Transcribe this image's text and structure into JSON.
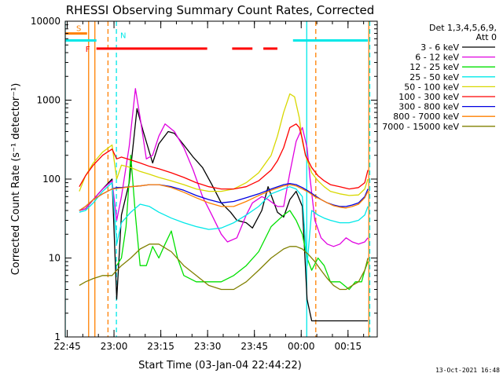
{
  "chart_data": {
    "type": "line",
    "title": "RHESSI Observing Summary Count Rates, Corrected",
    "xlabel": "Start Time (03-Jan-04 22:44:22)",
    "ylabel": "Corrected Count Rate (s⁻¹ detector⁻¹)",
    "x_unit": "minutes since start",
    "xlim": [
      0,
      100
    ],
    "ylim": [
      1,
      10000
    ],
    "y_scale": "log",
    "x_ticks": [
      {
        "x": 0.63,
        "label": "22:45"
      },
      {
        "x": 15.63,
        "label": "23:00"
      },
      {
        "x": 30.63,
        "label": "23:15"
      },
      {
        "x": 45.63,
        "label": "23:30"
      },
      {
        "x": 60.63,
        "label": "23:45"
      },
      {
        "x": 75.63,
        "label": "00:00"
      },
      {
        "x": 90.63,
        "label": "00:15"
      }
    ],
    "y_ticks": [
      {
        "y": 1,
        "label": "1"
      },
      {
        "y": 10,
        "label": "10"
      },
      {
        "y": 100,
        "label": "100"
      },
      {
        "y": 1000,
        "label": "1000"
      },
      {
        "y": 10000,
        "label": "10000"
      }
    ],
    "legend_header": [
      "Det 1,3,4,5,6,9,",
      "Att 0"
    ],
    "legend_position": "right",
    "grid": false,
    "series": [
      {
        "name": "3 - 6 keV",
        "color": "#000000",
        "x": [
          4.5,
          6.5,
          9,
          12,
          15,
          16.5,
          18,
          20.5,
          23,
          25,
          28,
          30,
          33,
          35,
          38,
          41,
          44,
          47,
          50,
          53,
          55,
          58,
          60,
          63,
          65,
          68,
          70,
          72,
          74,
          76,
          77.5,
          79,
          85,
          89,
          92,
          94,
          96,
          97
        ],
        "y": [
          40,
          42,
          55,
          75,
          100,
          3,
          35,
          90,
          780,
          400,
          160,
          280,
          400,
          380,
          270,
          190,
          140,
          85,
          50,
          38,
          30,
          28,
          24,
          40,
          80,
          38,
          33,
          55,
          70,
          45,
          3,
          1.6,
          1.6,
          1.6,
          1.6,
          1.6,
          1.6,
          1.6
        ]
      },
      {
        "name": "6 - 12 keV",
        "color": "#e000e0",
        "x": [
          4.5,
          6.5,
          9,
          12,
          15,
          16.5,
          18,
          20.5,
          22.5,
          24,
          26,
          28,
          30,
          32,
          35,
          38,
          41,
          44,
          47,
          50,
          52,
          55,
          58,
          60,
          63,
          65,
          68,
          70,
          72,
          74,
          76,
          77.5,
          78.5,
          80,
          82,
          84,
          86,
          88,
          90,
          92,
          94,
          96,
          97
        ],
        "y": [
          40,
          42,
          55,
          75,
          95,
          30,
          60,
          260,
          1400,
          600,
          180,
          200,
          350,
          500,
          400,
          250,
          130,
          60,
          35,
          20,
          16,
          18,
          35,
          50,
          60,
          55,
          45,
          45,
          120,
          300,
          450,
          250,
          100,
          30,
          18,
          15,
          14,
          15,
          18,
          16,
          15,
          16,
          18
        ]
      },
      {
        "name": "12 - 25 keV",
        "color": "#00e000",
        "x": [
          16.5,
          18,
          19.5,
          21,
          22.5,
          24,
          26,
          28,
          30,
          32,
          34,
          36,
          38,
          42,
          46,
          50,
          54,
          58,
          62,
          66,
          70,
          72,
          74,
          76,
          77.5,
          79,
          81,
          83,
          85,
          88,
          91,
          93,
          95,
          96,
          97
        ],
        "y": [
          8,
          10,
          25,
          200,
          35,
          8,
          8,
          14,
          10,
          15,
          22,
          10,
          6,
          5,
          5,
          5,
          6,
          8,
          12,
          25,
          35,
          40,
          30,
          20,
          10,
          7,
          10,
          8,
          5,
          5,
          4,
          5,
          5,
          7,
          9
        ]
      },
      {
        "name": "25 - 50 keV",
        "color": "#00e8e8",
        "x": [
          4.5,
          6.5,
          9,
          12,
          15,
          16.5,
          18,
          21,
          24,
          27,
          30,
          34,
          38,
          42,
          46,
          50,
          54,
          58,
          62,
          66,
          70,
          72,
          74,
          76,
          77.5,
          79,
          81,
          83,
          85,
          88,
          91,
          94,
          96,
          97
        ],
        "y": [
          38,
          40,
          50,
          70,
          90,
          15,
          28,
          38,
          48,
          45,
          38,
          32,
          28,
          25,
          23,
          24,
          28,
          35,
          45,
          65,
          75,
          80,
          75,
          60,
          8,
          40,
          35,
          32,
          30,
          28,
          28,
          30,
          35,
          45
        ]
      },
      {
        "name": "50 - 100 keV",
        "color": "#d8d800",
        "x": [
          4.5,
          6.5,
          9,
          12,
          15,
          16.5,
          18,
          21,
          24,
          27,
          30,
          34,
          38,
          42,
          46,
          50,
          54,
          58,
          62,
          66,
          68,
          70,
          72,
          73.5,
          75,
          76,
          77,
          79,
          81,
          83,
          85,
          88,
          91,
          94,
          96,
          97
        ],
        "y": [
          70,
          110,
          160,
          220,
          270,
          100,
          150,
          140,
          125,
          115,
          105,
          95,
          85,
          75,
          70,
          70,
          75,
          90,
          120,
          200,
          350,
          700,
          1200,
          1100,
          600,
          300,
          200,
          120,
          95,
          80,
          70,
          65,
          62,
          63,
          75,
          100
        ]
      },
      {
        "name": "100 - 300 keV",
        "color": "#ff0000",
        "x": [
          4.5,
          6.5,
          9,
          12,
          15,
          16.5,
          18,
          21,
          24,
          27,
          30,
          34,
          38,
          42,
          46,
          50,
          54,
          58,
          62,
          66,
          68,
          70,
          72,
          74,
          75,
          76,
          77,
          79,
          81,
          83,
          85,
          88,
          91,
          94,
          96,
          97
        ],
        "y": [
          80,
          110,
          150,
          200,
          240,
          180,
          190,
          175,
          160,
          145,
          135,
          120,
          105,
          90,
          80,
          75,
          75,
          80,
          95,
          130,
          170,
          250,
          450,
          500,
          450,
          320,
          200,
          140,
          110,
          95,
          85,
          80,
          75,
          78,
          90,
          130
        ]
      },
      {
        "name": "300 - 800 keV",
        "color": "#0000e0",
        "x": [
          4.5,
          6.5,
          9,
          12,
          15,
          16.5,
          18,
          21,
          24,
          27,
          30,
          34,
          38,
          42,
          46,
          50,
          54,
          58,
          62,
          66,
          70,
          72,
          74,
          76,
          78,
          80,
          82,
          84,
          86,
          88,
          90,
          92,
          94,
          96,
          97
        ],
        "y": [
          40,
          45,
          55,
          65,
          75,
          78,
          78,
          80,
          82,
          85,
          85,
          80,
          72,
          62,
          55,
          50,
          52,
          58,
          65,
          75,
          85,
          88,
          85,
          78,
          70,
          62,
          55,
          50,
          47,
          45,
          45,
          47,
          50,
          60,
          75
        ]
      },
      {
        "name": "800 - 7000 keV",
        "color": "#ff8000",
        "x": [
          4.5,
          6.5,
          9,
          12,
          15,
          16.5,
          18,
          21,
          24,
          27,
          30,
          34,
          38,
          42,
          46,
          50,
          54,
          58,
          62,
          66,
          70,
          72,
          74,
          76,
          78,
          80,
          82,
          84,
          86,
          88,
          90,
          92,
          94,
          96,
          97
        ],
        "y": [
          40,
          45,
          55,
          65,
          75,
          76,
          77,
          80,
          82,
          85,
          85,
          78,
          68,
          58,
          50,
          45,
          45,
          52,
          62,
          72,
          82,
          85,
          82,
          75,
          68,
          60,
          55,
          50,
          46,
          44,
          43,
          45,
          48,
          58,
          70
        ]
      },
      {
        "name": "7000 - 15000 keV",
        "color": "#808000",
        "x": [
          4.5,
          6.5,
          9,
          12,
          15,
          16.5,
          18,
          21,
          24,
          27,
          30,
          34,
          38,
          42,
          46,
          50,
          54,
          58,
          62,
          66,
          70,
          72,
          74,
          76,
          78,
          80,
          82,
          84,
          86,
          88,
          90,
          92,
          94,
          96,
          97
        ],
        "y": [
          4.5,
          5,
          5.5,
          6,
          6,
          7,
          8,
          10,
          13,
          15,
          15,
          12,
          8,
          6,
          4.5,
          4,
          4,
          5,
          7,
          10,
          13,
          14,
          14,
          13,
          11,
          9,
          7,
          5.5,
          4.5,
          4,
          4,
          4.5,
          5,
          7,
          10
        ]
      }
    ],
    "flags": [
      {
        "name": "S",
        "color": "#ff8000",
        "x": [
          0,
          7
        ],
        "y": 7000
      },
      {
        "name": "F",
        "color": "#ff0000",
        "segments": [
          [
            10,
            45.5
          ],
          [
            53.5,
            60
          ],
          [
            63.5,
            68
          ]
        ],
        "y": 4500
      },
      {
        "name": "N",
        "color": "#00e8e8",
        "segments": [
          [
            0,
            10
          ],
          [
            73,
            97
          ]
        ],
        "y": 5700
      }
    ],
    "vertical_markers": [
      {
        "x": 7.5,
        "color": "#ff8000",
        "style": "solid"
      },
      {
        "x": 13.7,
        "color": "#ff8000",
        "style": "dashed"
      },
      {
        "x": 16.4,
        "color": "#00e8e8",
        "style": "dashed"
      },
      {
        "x": 9.5,
        "color": "#ff8000",
        "style": "solid"
      },
      {
        "x": 0,
        "color": "#00e8e8",
        "style": "solid"
      },
      {
        "x": 97.3,
        "color": "#ff8000",
        "style": "solid"
      },
      {
        "x": 97.6,
        "color": "#00e8e8",
        "style": "dashed"
      },
      {
        "x": 77.4,
        "color": "#00e8e8",
        "style": "solid"
      },
      {
        "x": 80.3,
        "color": "#ff8000",
        "style": "dashed"
      }
    ]
  },
  "footer_timestamp": "13-Oct-2021 16:48"
}
